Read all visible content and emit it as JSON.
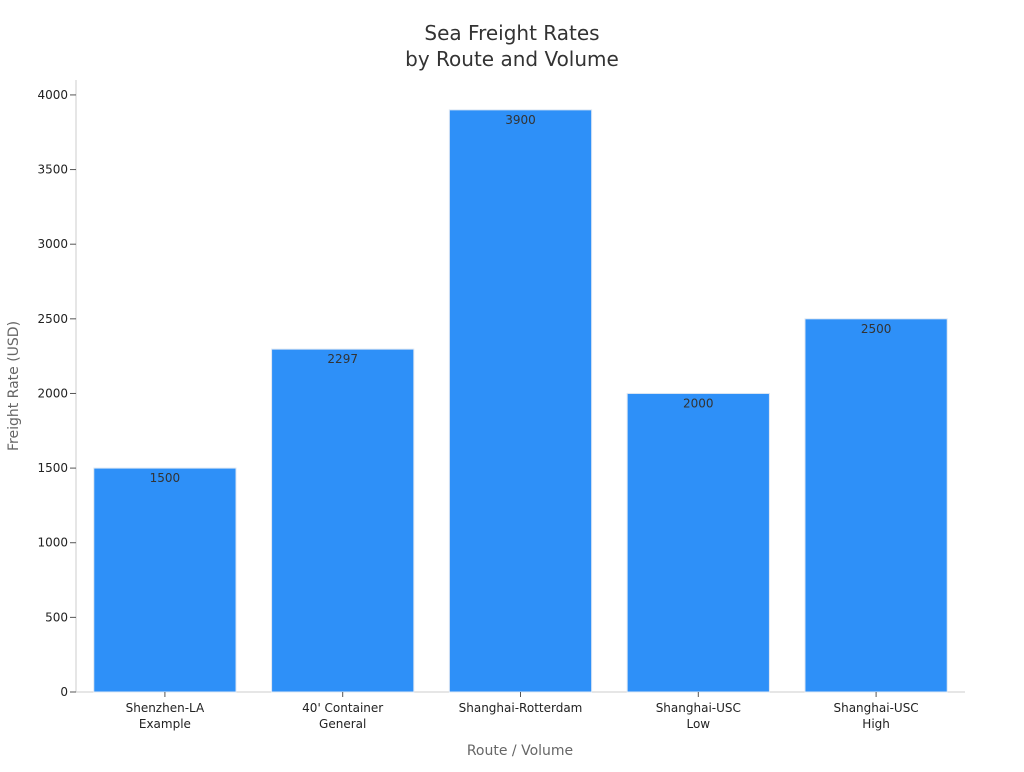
{
  "chart_data": {
    "type": "bar",
    "title_lines": [
      "Sea Freight Rates",
      "by Route and Volume"
    ],
    "xlabel": "Route / Volume",
    "ylabel": "Freight Rate (USD)",
    "categories": [
      [
        "Shenzhen-LA",
        "Example"
      ],
      [
        "40' Container",
        "General"
      ],
      [
        "Shanghai-Rotterdam"
      ],
      [
        "Shanghai-USC",
        "Low"
      ],
      [
        "Shanghai-USC",
        "High"
      ]
    ],
    "values": [
      1500,
      2297,
      3900,
      2000,
      2500
    ],
    "data_labels": [
      "1500",
      "2297",
      "3900",
      "2000",
      "2500"
    ],
    "ylim": [
      0,
      4100
    ],
    "yticks": [
      0,
      500,
      1000,
      1500,
      2000,
      2500,
      3000,
      3500,
      4000
    ],
    "grid": false,
    "legend": "none",
    "colors": {
      "bar": "#2e90f8",
      "axis": "#cccccc",
      "tick_text": "#222222",
      "label_text": "#666666",
      "title_text": "#333333",
      "data_label_text": "#333333"
    }
  }
}
